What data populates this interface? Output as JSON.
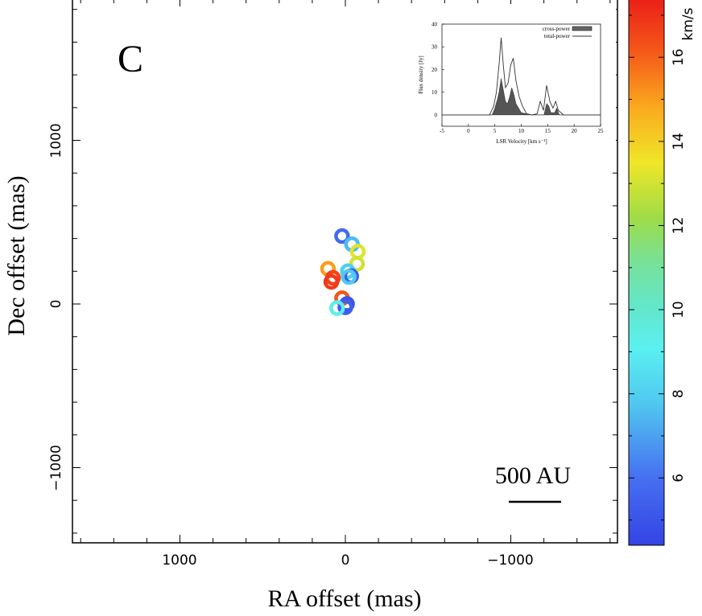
{
  "chart_data": [
    {
      "type": "scatter",
      "panel_label": "C",
      "xlabel": "RA offset (mas)",
      "ylabel": "Dec offset (mas)",
      "xlim": [
        1650,
        -1650
      ],
      "ylim": [
        -1450,
        1860
      ],
      "x_inverted": true,
      "xticks": [
        1000,
        0,
        -1000
      ],
      "xtick_labels": [
        "1000",
        "0",
        "−1000"
      ],
      "yticks": [
        1000,
        0,
        -1000
      ],
      "ytick_labels": [
        "1000",
        "0",
        "−1000"
      ],
      "scale_bar": {
        "label": "500 AU"
      },
      "colorbar": {
        "label": "km/s",
        "range": [
          4.4,
          17.4
        ],
        "ticks": [
          6,
          8,
          10,
          12,
          14,
          16
        ],
        "tick_labels": [
          "6",
          "8",
          "10",
          "12",
          "14",
          "16"
        ],
        "colormap": "rainbow (blue-cyan-green-yellow-red)"
      },
      "points": [
        {
          "x": 20,
          "y": 415,
          "v": 5.8
        },
        {
          "x": -40,
          "y": 365,
          "v": 7.5
        },
        {
          "x": -75,
          "y": 320,
          "v": 13.2
        },
        {
          "x": -70,
          "y": 245,
          "v": 13.0
        },
        {
          "x": -15,
          "y": 200,
          "v": 8.0
        },
        {
          "x": -35,
          "y": 170,
          "v": 5.2
        },
        {
          "x": -20,
          "y": 165,
          "v": 7.8
        },
        {
          "x": 105,
          "y": 215,
          "v": 15.0
        },
        {
          "x": 75,
          "y": 160,
          "v": 16.6
        },
        {
          "x": 85,
          "y": 135,
          "v": 16.8
        },
        {
          "x": 20,
          "y": 35,
          "v": 16.2
        },
        {
          "x": -10,
          "y": 0,
          "v": 5.0
        },
        {
          "x": 0,
          "y": -20,
          "v": 5.4
        },
        {
          "x": 50,
          "y": -25,
          "v": 9.3
        }
      ]
    },
    {
      "type": "line",
      "role": "inset spectrum",
      "xlabel": "LSR Velocity [km s⁻¹]",
      "ylabel": "Flux density [Jy]",
      "xlim": [
        -5,
        25
      ],
      "ylim": [
        -5,
        40
      ],
      "xticks": [
        -5,
        0,
        5,
        10,
        15,
        20,
        25
      ],
      "yticks": [
        0,
        10,
        20,
        30,
        40
      ],
      "legend_position": "top-right",
      "series": [
        {
          "name": "total-power",
          "style": "line",
          "x": [
            -5,
            -2,
            0,
            2,
            4,
            4.8,
            5.3,
            5.8,
            6.2,
            6.6,
            7.0,
            7.5,
            8.0,
            8.5,
            9.0,
            9.6,
            10.2,
            11,
            12,
            13,
            13.6,
            14.2,
            14.8,
            15.4,
            16,
            16.5,
            17,
            18,
            20,
            25
          ],
          "y": [
            0,
            0,
            0,
            0,
            0,
            4,
            10,
            22,
            34,
            22,
            12,
            14,
            22,
            25,
            15,
            8,
            4,
            0.5,
            0,
            0.5,
            6,
            2,
            13,
            6,
            3,
            6,
            2,
            0,
            0,
            0
          ]
        },
        {
          "name": "cross-power",
          "style": "filled",
          "x": [
            -5,
            4.5,
            5.0,
            5.5,
            5.8,
            6.2,
            6.6,
            7.0,
            7.4,
            7.8,
            8.2,
            8.6,
            9.0,
            9.5,
            10,
            12,
            14.3,
            14.8,
            15.2,
            15.6,
            16.3,
            16.7,
            17.2,
            25
          ],
          "y": [
            0,
            0,
            3,
            7,
            10,
            16,
            11,
            6,
            5,
            8,
            12,
            9,
            5,
            3,
            1,
            0,
            0,
            5,
            4,
            1,
            1,
            3,
            0,
            0
          ]
        }
      ]
    }
  ]
}
